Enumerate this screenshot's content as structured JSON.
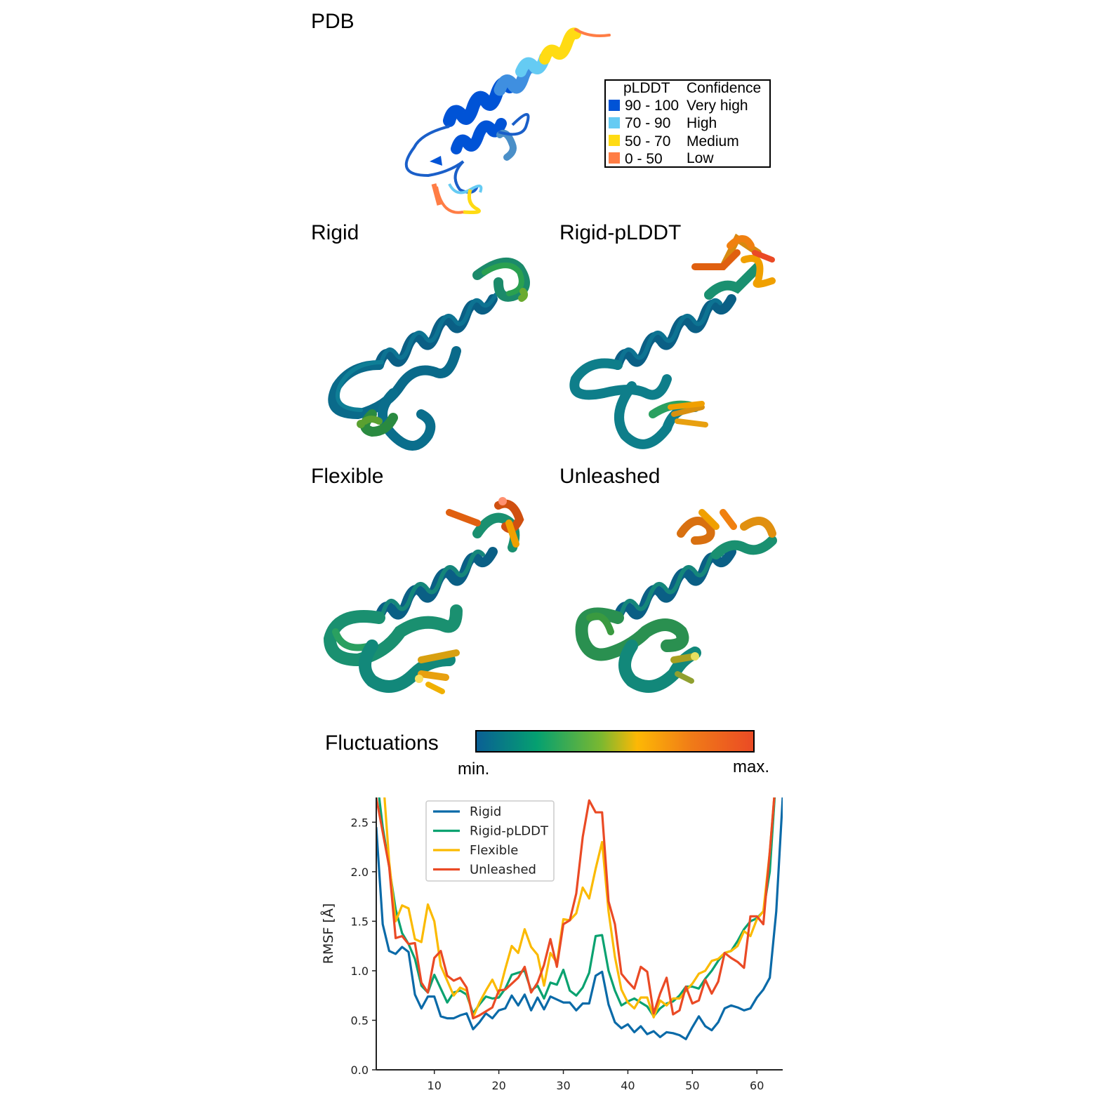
{
  "panels": {
    "pdb": {
      "title": "PDB"
    },
    "rigid": {
      "title": "Rigid"
    },
    "rigid_plddt": {
      "title": "Rigid-pLDDT"
    },
    "flexible": {
      "title": "Flexible"
    },
    "unleashed": {
      "title": "Unleashed"
    }
  },
  "plddt_legend": {
    "header_range": "pLDDT",
    "header_conf": "Confidence",
    "rows": [
      {
        "range": "90 - 100",
        "confidence": "Very high",
        "color": "#0053d6"
      },
      {
        "range": "70 - 90",
        "confidence": "High",
        "color": "#65cbf3"
      },
      {
        "range": "50 - 70",
        "confidence": "Medium",
        "color": "#ffdb13"
      },
      {
        "range": "0 - 50",
        "confidence": "Low",
        "color": "#ff7d45"
      }
    ]
  },
  "colorbar": {
    "label": "Fluctuations",
    "min_label": "min.",
    "max_label": "max.",
    "colors": [
      "#0a5f95",
      "#05a070",
      "#7bb830",
      "#fdb805",
      "#f07a18",
      "#ea4a25"
    ]
  },
  "chart_data": {
    "type": "line",
    "xlabel": "",
    "ylabel": "RMSF [Å]",
    "xlim": [
      1,
      64
    ],
    "ylim": [
      0,
      2.75
    ],
    "xticks": [
      10,
      20,
      30,
      40,
      50,
      60
    ],
    "yticks": [
      "0.0",
      "0.5",
      "1.0",
      "1.5",
      "2.0",
      "2.5"
    ],
    "legend_position": "top-left",
    "grid": false,
    "x": [
      1,
      2,
      3,
      4,
      5,
      6,
      7,
      8,
      9,
      10,
      11,
      12,
      13,
      14,
      15,
      16,
      17,
      18,
      19,
      20,
      21,
      22,
      23,
      24,
      25,
      26,
      27,
      28,
      29,
      30,
      31,
      32,
      33,
      34,
      35,
      36,
      37,
      38,
      39,
      40,
      41,
      42,
      43,
      44,
      45,
      46,
      47,
      48,
      49,
      50,
      51,
      52,
      53,
      54,
      55,
      56,
      57,
      58,
      59,
      60,
      61,
      62,
      63,
      64
    ],
    "series": [
      {
        "name": "Rigid",
        "color": "#0a6aa8",
        "values": [
          2.45,
          1.47,
          1.2,
          1.17,
          1.24,
          1.19,
          0.76,
          0.62,
          0.74,
          0.74,
          0.54,
          0.52,
          0.52,
          0.55,
          0.57,
          0.41,
          0.48,
          0.57,
          0.52,
          0.6,
          0.62,
          0.75,
          0.65,
          0.76,
          0.6,
          0.73,
          0.61,
          0.74,
          0.71,
          0.68,
          0.68,
          0.6,
          0.67,
          0.67,
          0.95,
          0.99,
          0.66,
          0.48,
          0.42,
          0.46,
          0.38,
          0.44,
          0.36,
          0.39,
          0.33,
          0.38,
          0.37,
          0.35,
          0.31,
          0.43,
          0.54,
          0.44,
          0.4,
          0.48,
          0.62,
          0.65,
          0.63,
          0.6,
          0.62,
          0.73,
          0.81,
          0.93,
          1.6,
          2.75
        ]
      },
      {
        "name": "Rigid-pLDDT",
        "color": "#0aa270",
        "values": [
          3.0,
          2.45,
          2.05,
          1.62,
          1.38,
          1.27,
          1.12,
          0.85,
          0.78,
          0.96,
          0.82,
          0.68,
          0.78,
          0.8,
          0.76,
          0.57,
          0.66,
          0.74,
          0.72,
          0.73,
          0.82,
          0.96,
          0.98,
          1.0,
          0.8,
          0.85,
          0.72,
          0.88,
          0.86,
          1.01,
          0.8,
          0.75,
          0.83,
          0.98,
          1.35,
          1.36,
          1.0,
          0.8,
          0.65,
          0.69,
          0.72,
          0.68,
          0.64,
          0.54,
          0.62,
          0.67,
          0.69,
          0.75,
          0.84,
          0.84,
          0.82,
          0.92,
          1.0,
          1.1,
          1.18,
          1.2,
          1.3,
          1.42,
          1.5,
          1.53,
          1.6,
          2.0,
          3.0,
          3.0
        ]
      },
      {
        "name": "Flexible",
        "color": "#fbba00",
        "values": [
          3.0,
          3.0,
          2.1,
          1.5,
          1.66,
          1.63,
          1.32,
          1.29,
          1.67,
          1.5,
          1.05,
          0.9,
          0.75,
          0.83,
          0.8,
          0.53,
          0.68,
          0.8,
          0.91,
          0.77,
          1.02,
          1.25,
          1.18,
          1.42,
          1.24,
          1.16,
          0.85,
          1.18,
          1.08,
          1.52,
          1.51,
          1.58,
          1.84,
          1.73,
          2.03,
          2.3,
          1.6,
          1.14,
          0.81,
          0.68,
          0.62,
          0.73,
          0.73,
          0.53,
          0.7,
          0.65,
          0.72,
          0.72,
          0.8,
          0.87,
          0.97,
          1.0,
          1.1,
          1.12,
          1.18,
          1.2,
          1.25,
          1.4,
          1.35,
          1.52,
          1.6,
          2.2,
          3.0,
          3.0
        ]
      },
      {
        "name": "Unleashed",
        "color": "#ea4a25",
        "values": [
          2.75,
          2.4,
          2.05,
          1.33,
          1.35,
          1.27,
          1.28,
          0.88,
          0.78,
          1.13,
          1.2,
          0.95,
          0.9,
          0.93,
          0.83,
          0.52,
          0.55,
          0.59,
          0.63,
          0.8,
          0.81,
          0.87,
          0.93,
          1.04,
          0.78,
          0.88,
          1.06,
          1.32,
          1.04,
          1.47,
          1.51,
          1.78,
          2.35,
          2.72,
          2.6,
          2.6,
          1.7,
          1.47,
          0.97,
          0.89,
          0.82,
          1.04,
          0.99,
          0.57,
          0.77,
          0.93,
          0.56,
          0.6,
          0.84,
          0.67,
          0.7,
          0.91,
          0.77,
          0.89,
          1.18,
          1.13,
          1.09,
          1.03,
          1.55,
          1.55,
          1.47,
          2.2,
          3.0,
          3.0
        ]
      }
    ]
  }
}
